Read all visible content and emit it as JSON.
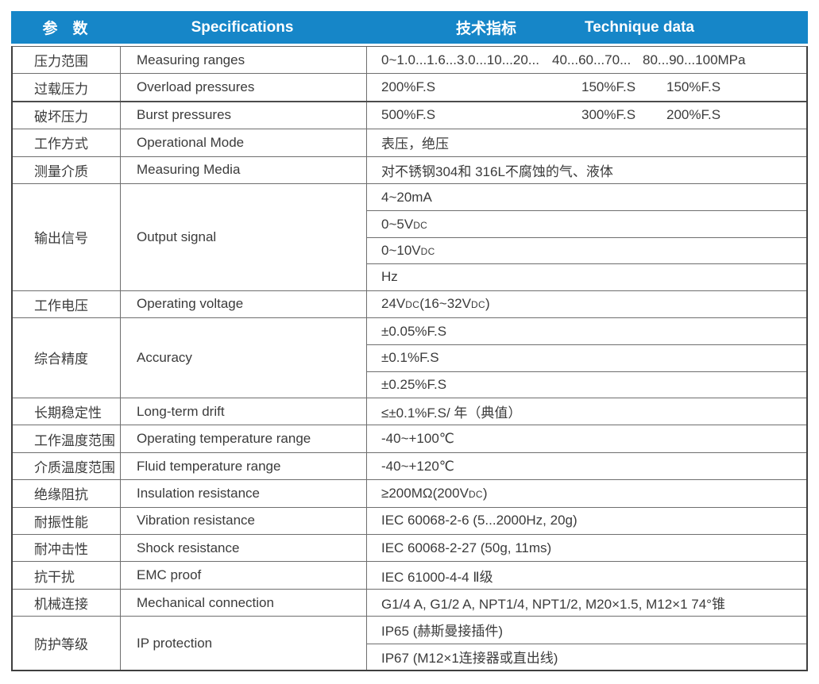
{
  "colors": {
    "header_blue": "#1686c8",
    "header_text": "#ffffff",
    "body_text": "#3b3b3b",
    "grid_line": "#6e6e6e",
    "outer_border": "#3f3f3f",
    "background": "#ffffff"
  },
  "table": {
    "header": {
      "param_label": "参　数",
      "spec_label": "Specifications",
      "tech_label_zh": "技术指标",
      "tech_label_en": "Technique data"
    },
    "rows": [
      {
        "param_zh": "压力范围",
        "param_en": "Measuring ranges",
        "values": [
          {
            "parts": [
              "0~1.0...1.6...3.0...10...20...",
              "40...60...70...",
              "80...90...100MPa"
            ]
          }
        ]
      },
      {
        "param_zh": "过载压力",
        "param_en": "Overload pressures",
        "values": [
          {
            "parts": [
              "200%F.S",
              "150%F.S",
              "150%F.S"
            ]
          }
        ]
      },
      {
        "param_zh": "破坏压力",
        "param_en": "Burst pressures",
        "thick_top": true,
        "values": [
          {
            "parts": [
              "500%F.S",
              "300%F.S",
              "200%F.S"
            ]
          }
        ]
      },
      {
        "param_zh": "工作方式",
        "param_en": "Operational Mode",
        "values": [
          {
            "parts": [
              "表压，绝压"
            ]
          }
        ]
      },
      {
        "param_zh": "测量介质",
        "param_en": "Measuring Media",
        "values": [
          {
            "parts": [
              "对不锈钢304和 316L不腐蚀的气、液体"
            ]
          }
        ]
      },
      {
        "param_zh": "输出信号",
        "param_en": "Output signal",
        "values": [
          {
            "parts": [
              "4~20mA"
            ]
          },
          {
            "parts": [
              [
                {
                  "t": "0~5V"
                },
                {
                  "t": "DC",
                  "sc": true
                }
              ]
            ]
          },
          {
            "parts": [
              [
                {
                  "t": "0~10V"
                },
                {
                  "t": "DC",
                  "sc": true
                }
              ]
            ]
          },
          {
            "parts": [
              "Hz"
            ]
          }
        ]
      },
      {
        "param_zh": "工作电压",
        "param_en": "Operating voltage",
        "values": [
          {
            "parts": [
              [
                {
                  "t": "24V"
                },
                {
                  "t": "DC",
                  "sc": true
                },
                {
                  "t": "(16~32V"
                },
                {
                  "t": "DC",
                  "sc": true
                },
                {
                  "t": ")"
                }
              ]
            ]
          }
        ]
      },
      {
        "param_zh": "综合精度",
        "param_en": "Accuracy",
        "values": [
          {
            "parts": [
              "±0.05%F.S"
            ]
          },
          {
            "parts": [
              "±0.1%F.S"
            ]
          },
          {
            "parts": [
              "±0.25%F.S"
            ]
          }
        ]
      },
      {
        "param_zh": "长期稳定性",
        "param_en": "Long-term drift",
        "values": [
          {
            "parts": [
              "≤±0.1%F.S/ 年（典值）"
            ]
          }
        ]
      },
      {
        "param_zh": "工作温度范围",
        "param_en": "Operating temperature range",
        "values": [
          {
            "parts": [
              "-40~+100℃"
            ]
          }
        ]
      },
      {
        "param_zh": "介质温度范围",
        "param_en": "Fluid temperature range",
        "values": [
          {
            "parts": [
              "-40~+120℃"
            ]
          }
        ]
      },
      {
        "param_zh": "绝缘阻抗",
        "param_en": "Insulation resistance",
        "values": [
          {
            "parts": [
              [
                {
                  "t": "≥200MΩ(200V"
                },
                {
                  "t": "DC",
                  "sc": true
                },
                {
                  "t": ")"
                }
              ]
            ]
          }
        ]
      },
      {
        "param_zh": "耐振性能",
        "param_en": "Vibration resistance",
        "values": [
          {
            "parts": [
              "IEC 60068-2-6 (5...2000Hz, 20g)"
            ]
          }
        ]
      },
      {
        "param_zh": "耐冲击性",
        "param_en": "Shock resistance",
        "values": [
          {
            "parts": [
              "IEC 60068-2-27 (50g, 11ms)"
            ]
          }
        ]
      },
      {
        "param_zh": "抗干扰",
        "param_en": "EMC proof",
        "values": [
          {
            "parts": [
              "IEC 61000-4-4 Ⅱ级"
            ]
          }
        ]
      },
      {
        "param_zh": "机械连接",
        "param_en": "Mechanical connection",
        "values": [
          {
            "parts": [
              "G1/4 A, G1/2 A, NPT1/4, NPT1/2, M20×1.5, M12×1 74°锥"
            ]
          }
        ]
      },
      {
        "param_zh": "防护等级",
        "param_en": "IP protection",
        "values": [
          {
            "parts": [
              "IP65 (赫斯曼接插件)"
            ]
          },
          {
            "parts": [
              "IP67 (M12×1连接器或直出线)"
            ]
          }
        ]
      }
    ]
  }
}
